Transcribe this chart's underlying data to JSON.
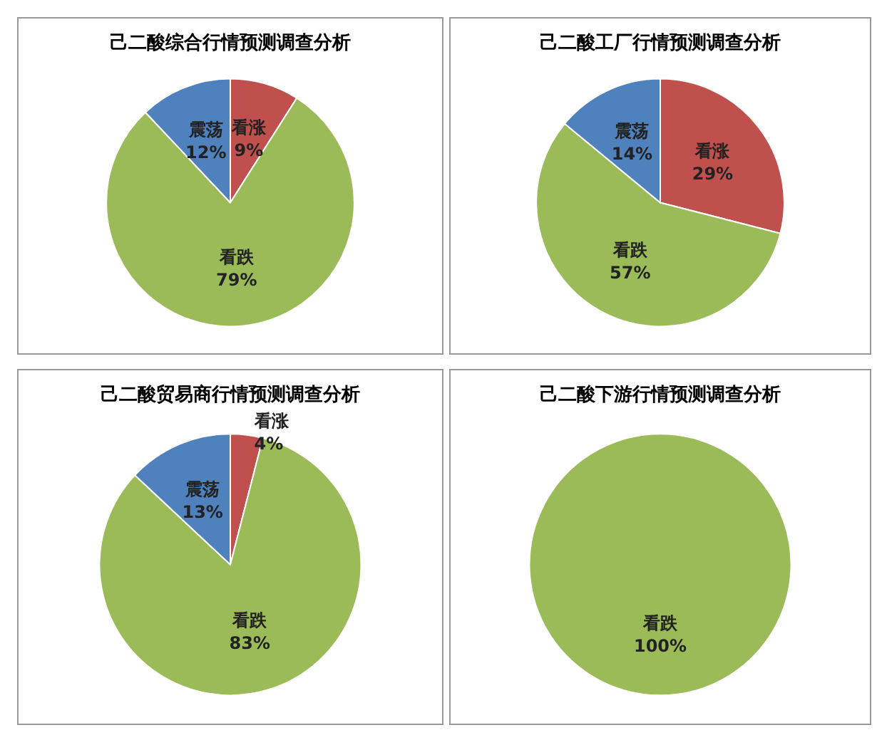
{
  "chart_data": [
    {
      "type": "pie",
      "title": "己二酸综合行情预测调查分析",
      "categories": [
        "看涨",
        "看跌",
        "震荡"
      ],
      "values": [
        9,
        79,
        12
      ],
      "value_labels": [
        "9%",
        "79%",
        "12%"
      ],
      "colors": [
        "#c0504d",
        "#9bbb59",
        "#4f81bd"
      ],
      "legend": false
    },
    {
      "type": "pie",
      "title": "己二酸工厂行情预测调查分析",
      "categories": [
        "看涨",
        "看跌",
        "震荡"
      ],
      "values": [
        29,
        57,
        14
      ],
      "value_labels": [
        "29%",
        "57%",
        "14%"
      ],
      "colors": [
        "#c0504d",
        "#9bbb59",
        "#4f81bd"
      ],
      "legend": false
    },
    {
      "type": "pie",
      "title": "己二酸贸易商行情预测调查分析",
      "categories": [
        "看涨",
        "看跌",
        "震荡"
      ],
      "values": [
        4,
        83,
        13
      ],
      "value_labels": [
        "4%",
        "83%",
        "13%"
      ],
      "colors": [
        "#c0504d",
        "#9bbb59",
        "#4f81bd"
      ],
      "legend": false
    },
    {
      "type": "pie",
      "title": "己二酸下游行情预测调查分析",
      "categories": [
        "看跌"
      ],
      "values": [
        100
      ],
      "value_labels": [
        "100%"
      ],
      "colors": [
        "#9bbb59"
      ],
      "legend": false
    }
  ]
}
